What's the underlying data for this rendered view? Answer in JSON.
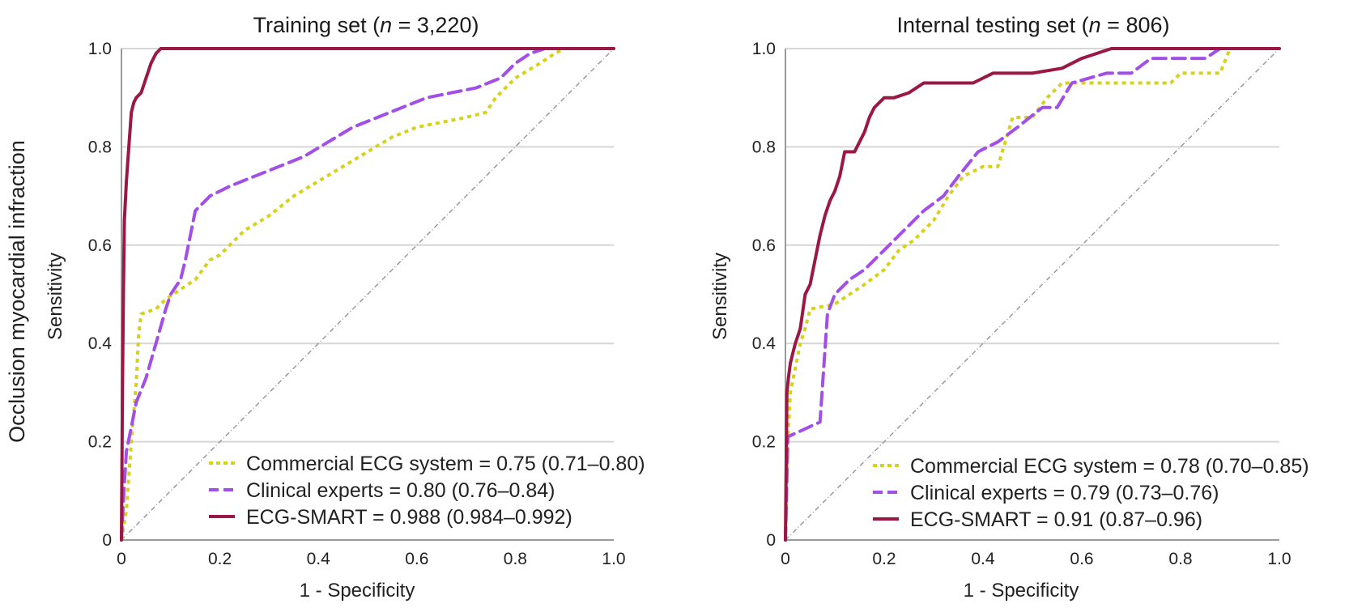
{
  "figure": {
    "shared_ylabel": "Occlusion myocardial infraction"
  },
  "colors": {
    "commercial": "#d6d21a",
    "clinical": "#a24ee8",
    "ecgsmart": "#9b1746",
    "grid": "#d6d6d6",
    "diagonal": "#9a9a9a"
  },
  "chart_data": [
    {
      "type": "line",
      "title_prefix": "Training set (",
      "title_italic": "n",
      "title_suffix": " = 3,220)",
      "xlabel": "1 - Specificity",
      "ylabel": "Sensitivity",
      "xlim": [
        0,
        1
      ],
      "ylim": [
        0,
        1
      ],
      "xticks": [
        "0",
        "0.2",
        "0.4",
        "0.6",
        "0.8",
        "1.0"
      ],
      "yticks": [
        "0",
        "0.2",
        "0.4",
        "0.6",
        "0.8",
        "1.0"
      ],
      "grid": "horizontal",
      "legend_position": "bottom-right",
      "series": [
        {
          "name": "Commercial ECG system",
          "label": "Commercial ECG system = 0.75 (0.71–0.80)",
          "style": "dotted",
          "color_key": "commercial",
          "x": [
            0,
            0.01,
            0.02,
            0.03,
            0.035,
            0.04,
            0.07,
            0.09,
            0.12,
            0.15,
            0.18,
            0.2,
            0.25,
            0.3,
            0.35,
            0.4,
            0.45,
            0.5,
            0.55,
            0.6,
            0.65,
            0.7,
            0.74,
            0.76,
            0.8,
            0.85,
            0.88,
            0.9,
            1.0
          ],
          "y": [
            0,
            0.06,
            0.2,
            0.32,
            0.42,
            0.46,
            0.47,
            0.49,
            0.51,
            0.53,
            0.57,
            0.58,
            0.63,
            0.66,
            0.7,
            0.73,
            0.76,
            0.79,
            0.82,
            0.84,
            0.85,
            0.86,
            0.87,
            0.9,
            0.94,
            0.97,
            0.99,
            1.0,
            1.0
          ]
        },
        {
          "name": "Clinical experts",
          "label": "Clinical experts = 0.80 (0.76–0.84)",
          "style": "dashed",
          "color_key": "clinical",
          "x": [
            0,
            0.005,
            0.01,
            0.02,
            0.03,
            0.05,
            0.07,
            0.09,
            0.1,
            0.12,
            0.13,
            0.15,
            0.18,
            0.22,
            0.27,
            0.32,
            0.37,
            0.42,
            0.47,
            0.52,
            0.57,
            0.62,
            0.67,
            0.72,
            0.77,
            0.8,
            0.83,
            0.86,
            0.9,
            1.0
          ],
          "y": [
            0,
            0.1,
            0.18,
            0.23,
            0.28,
            0.33,
            0.4,
            0.47,
            0.5,
            0.53,
            0.57,
            0.67,
            0.7,
            0.72,
            0.74,
            0.76,
            0.78,
            0.81,
            0.84,
            0.86,
            0.88,
            0.9,
            0.91,
            0.92,
            0.94,
            0.97,
            0.99,
            1.0,
            1.0,
            1.0
          ]
        },
        {
          "name": "ECG-SMART",
          "label": "ECG-SMART = 0.988 (0.984–0.992)",
          "style": "solid",
          "color_key": "ecgsmart",
          "x": [
            0,
            0.002,
            0.004,
            0.006,
            0.01,
            0.015,
            0.02,
            0.025,
            0.03,
            0.04,
            0.05,
            0.06,
            0.07,
            0.08,
            0.1,
            0.17,
            0.18,
            0.3,
            1.0
          ],
          "y": [
            0,
            0.3,
            0.5,
            0.65,
            0.73,
            0.8,
            0.87,
            0.89,
            0.9,
            0.91,
            0.94,
            0.97,
            0.99,
            1.0,
            1.0,
            1.0,
            1.0,
            1.0,
            1.0
          ]
        }
      ]
    },
    {
      "type": "line",
      "title_prefix": "Internal testing set (",
      "title_italic": "n",
      "title_suffix": " = 806)",
      "xlabel": "1 - Specificity",
      "ylabel": "Sensitivity",
      "xlim": [
        0,
        1
      ],
      "ylim": [
        0,
        1
      ],
      "xticks": [
        "0",
        "0.2",
        "0.4",
        "0.6",
        "0.8",
        "1.0"
      ],
      "yticks": [
        "0",
        "0.2",
        "0.4",
        "0.6",
        "0.8",
        "1.0"
      ],
      "grid": "horizontal",
      "legend_position": "bottom-right",
      "series": [
        {
          "name": "Commercial ECG system",
          "label": "Commercial ECG system = 0.78 (0.70–0.85)",
          "style": "dotted",
          "color_key": "commercial",
          "x": [
            0,
            0.005,
            0.01,
            0.02,
            0.03,
            0.04,
            0.05,
            0.1,
            0.13,
            0.16,
            0.2,
            0.23,
            0.26,
            0.3,
            0.33,
            0.36,
            0.4,
            0.43,
            0.46,
            0.5,
            0.53,
            0.56,
            0.58,
            0.62,
            0.7,
            0.78,
            0.8,
            0.88,
            0.9,
            1.0
          ],
          "y": [
            0,
            0.2,
            0.3,
            0.35,
            0.4,
            0.43,
            0.47,
            0.48,
            0.5,
            0.52,
            0.55,
            0.59,
            0.61,
            0.65,
            0.7,
            0.74,
            0.76,
            0.76,
            0.86,
            0.86,
            0.9,
            0.93,
            0.93,
            0.93,
            0.93,
            0.93,
            0.95,
            0.95,
            1.0,
            1.0
          ]
        },
        {
          "name": "Clinical experts",
          "label": "Clinical experts = 0.79 (0.73–0.76)",
          "style": "dashed",
          "color_key": "clinical",
          "x": [
            0,
            0.005,
            0.07,
            0.085,
            0.1,
            0.13,
            0.16,
            0.2,
            0.24,
            0.28,
            0.32,
            0.35,
            0.39,
            0.43,
            0.47,
            0.52,
            0.55,
            0.58,
            0.65,
            0.7,
            0.74,
            0.85,
            0.88,
            1.0
          ],
          "y": [
            0,
            0.21,
            0.24,
            0.46,
            0.5,
            0.53,
            0.55,
            0.59,
            0.63,
            0.67,
            0.7,
            0.74,
            0.79,
            0.81,
            0.84,
            0.88,
            0.88,
            0.93,
            0.95,
            0.95,
            0.98,
            0.98,
            1.0,
            1.0
          ]
        },
        {
          "name": "ECG-SMART",
          "label": "ECG-SMART = 0.91 (0.87–0.96)",
          "style": "solid",
          "color_key": "ecgsmart",
          "x": [
            0,
            0.003,
            0.006,
            0.01,
            0.015,
            0.02,
            0.03,
            0.04,
            0.05,
            0.06,
            0.07,
            0.08,
            0.09,
            0.1,
            0.11,
            0.12,
            0.14,
            0.15,
            0.16,
            0.17,
            0.18,
            0.2,
            0.22,
            0.25,
            0.28,
            0.34,
            0.38,
            0.42,
            0.5,
            0.56,
            0.6,
            0.66,
            0.7,
            0.8,
            1.0
          ],
          "y": [
            0,
            0.3,
            0.33,
            0.36,
            0.38,
            0.4,
            0.43,
            0.5,
            0.52,
            0.57,
            0.62,
            0.66,
            0.69,
            0.71,
            0.74,
            0.79,
            0.79,
            0.81,
            0.83,
            0.86,
            0.88,
            0.9,
            0.9,
            0.91,
            0.93,
            0.93,
            0.93,
            0.95,
            0.95,
            0.96,
            0.98,
            1.0,
            1.0,
            1.0,
            1.0
          ]
        }
      ]
    }
  ]
}
